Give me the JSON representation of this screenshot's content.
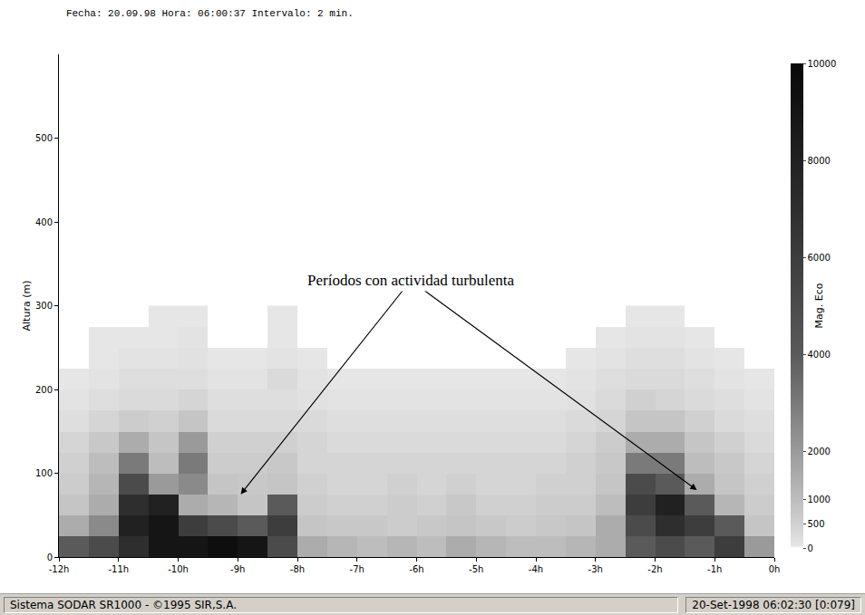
{
  "chart_data": {
    "type": "heatmap",
    "title": "Fecha: 20.09.98 Hora: 06:00:37 Intervalo: 2 min.",
    "y_label": "Altura (m)",
    "x": [
      -11.75,
      -11.25,
      -10.75,
      -10.25,
      -9.75,
      -9.25,
      -8.75,
      -8.25,
      -7.75,
      -7.25,
      -6.75,
      -6.25,
      -5.75,
      -5.25,
      -4.75,
      -4.25,
      -3.75,
      -3.25,
      -2.75,
      -2.25,
      -1.75,
      -1.25,
      -0.75,
      -0.25
    ],
    "y": [
      12.5,
      37.5,
      62.5,
      87.5,
      112.5,
      137.5,
      162.5,
      187.5,
      212.5,
      237.5,
      262.5,
      287.5
    ],
    "cells": [
      [
        4000,
        5000,
        7000,
        9000,
        9000,
        9500,
        9000,
        5000,
        1500,
        1200,
        1000,
        1200,
        1000,
        1500,
        1200,
        1000,
        1000,
        1200,
        1500,
        4000,
        5000,
        4000,
        6000,
        2000
      ],
      [
        1500,
        2500,
        8000,
        9000,
        6000,
        5000,
        4000,
        6000,
        800,
        700,
        700,
        600,
        700,
        800,
        700,
        600,
        700,
        800,
        1500,
        5000,
        7000,
        6000,
        4000,
        800
      ],
      [
        800,
        1500,
        7000,
        8000,
        1500,
        1200,
        800,
        4000,
        600,
        500,
        500,
        600,
        500,
        700,
        500,
        500,
        600,
        600,
        1000,
        6000,
        8000,
        4000,
        1200,
        600
      ],
      [
        600,
        1200,
        5000,
        2000,
        2500,
        800,
        700,
        800,
        500,
        400,
        400,
        500,
        400,
        500,
        400,
        400,
        500,
        500,
        800,
        5000,
        4000,
        1500,
        800,
        500
      ],
      [
        500,
        1000,
        3000,
        1000,
        3000,
        600,
        600,
        700,
        400,
        400,
        400,
        400,
        400,
        400,
        400,
        400,
        400,
        500,
        700,
        3000,
        3000,
        1000,
        700,
        400
      ],
      [
        400,
        700,
        1500,
        800,
        2000,
        500,
        500,
        500,
        400,
        300,
        300,
        300,
        300,
        300,
        300,
        300,
        300,
        400,
        600,
        1500,
        1500,
        800,
        500,
        300
      ],
      [
        200,
        400,
        600,
        500,
        800,
        300,
        300,
        300,
        300,
        200,
        200,
        200,
        200,
        200,
        200,
        200,
        200,
        300,
        400,
        800,
        800,
        500,
        300,
        200
      ],
      [
        100,
        200,
        300,
        300,
        400,
        200,
        200,
        200,
        150,
        100,
        100,
        100,
        100,
        100,
        100,
        100,
        100,
        150,
        300,
        500,
        400,
        300,
        200,
        100
      ],
      [
        50,
        100,
        200,
        200,
        200,
        100,
        100,
        300,
        100,
        50,
        50,
        50,
        50,
        50,
        50,
        50,
        50,
        100,
        200,
        300,
        300,
        200,
        100,
        50
      ],
      [
        0,
        50,
        100,
        100,
        150,
        50,
        50,
        100,
        50,
        0,
        0,
        0,
        0,
        0,
        0,
        0,
        0,
        50,
        100,
        200,
        200,
        100,
        50,
        0
      ],
      [
        0,
        50,
        50,
        50,
        100,
        0,
        0,
        50,
        0,
        0,
        0,
        0,
        0,
        0,
        0,
        0,
        0,
        0,
        50,
        100,
        100,
        50,
        0,
        0
      ],
      [
        0,
        0,
        0,
        50,
        50,
        0,
        0,
        50,
        0,
        0,
        0,
        0,
        0,
        0,
        0,
        0,
        0,
        0,
        0,
        50,
        50,
        0,
        0,
        0
      ]
    ],
    "xlim": [
      -12,
      0
    ],
    "xticks": [
      {
        "value": -12,
        "label": "-12h"
      },
      {
        "value": -11,
        "label": "-11h"
      },
      {
        "value": -10,
        "label": "-10h"
      },
      {
        "value": -9,
        "label": "-9h"
      },
      {
        "value": -8,
        "label": "-8h"
      },
      {
        "value": -7,
        "label": "-7h"
      },
      {
        "value": -6,
        "label": "-6h"
      },
      {
        "value": -5,
        "label": "-5h"
      },
      {
        "value": -4,
        "label": "-4h"
      },
      {
        "value": -3,
        "label": "-3h"
      },
      {
        "value": -2,
        "label": "-2h"
      },
      {
        "value": -1,
        "label": "-1h"
      },
      {
        "value": 0,
        "label": "0h"
      }
    ],
    "ylim": [
      0,
      600
    ],
    "yticks": [
      0,
      100,
      200,
      300,
      400,
      500
    ],
    "colorbar": {
      "title": "Mag. Eco",
      "range": [
        0,
        10000
      ],
      "ticks": [
        0,
        500,
        1000,
        2000,
        4000,
        6000,
        8000,
        10000
      ]
    },
    "grid": false,
    "annotation": {
      "text": "Períodos con actividad turbulenta",
      "x": -6.1,
      "y": 330,
      "arrow_points": [
        {
          "x": -8.95,
          "y": 75
        },
        {
          "x": -1.3,
          "y": 80
        }
      ]
    }
  },
  "status_bar": {
    "left": "Sistema SODAR SR1000 - ©1995 SIR,S.A.",
    "right": "20-Set-1998 06:02:30 [0:079]"
  }
}
